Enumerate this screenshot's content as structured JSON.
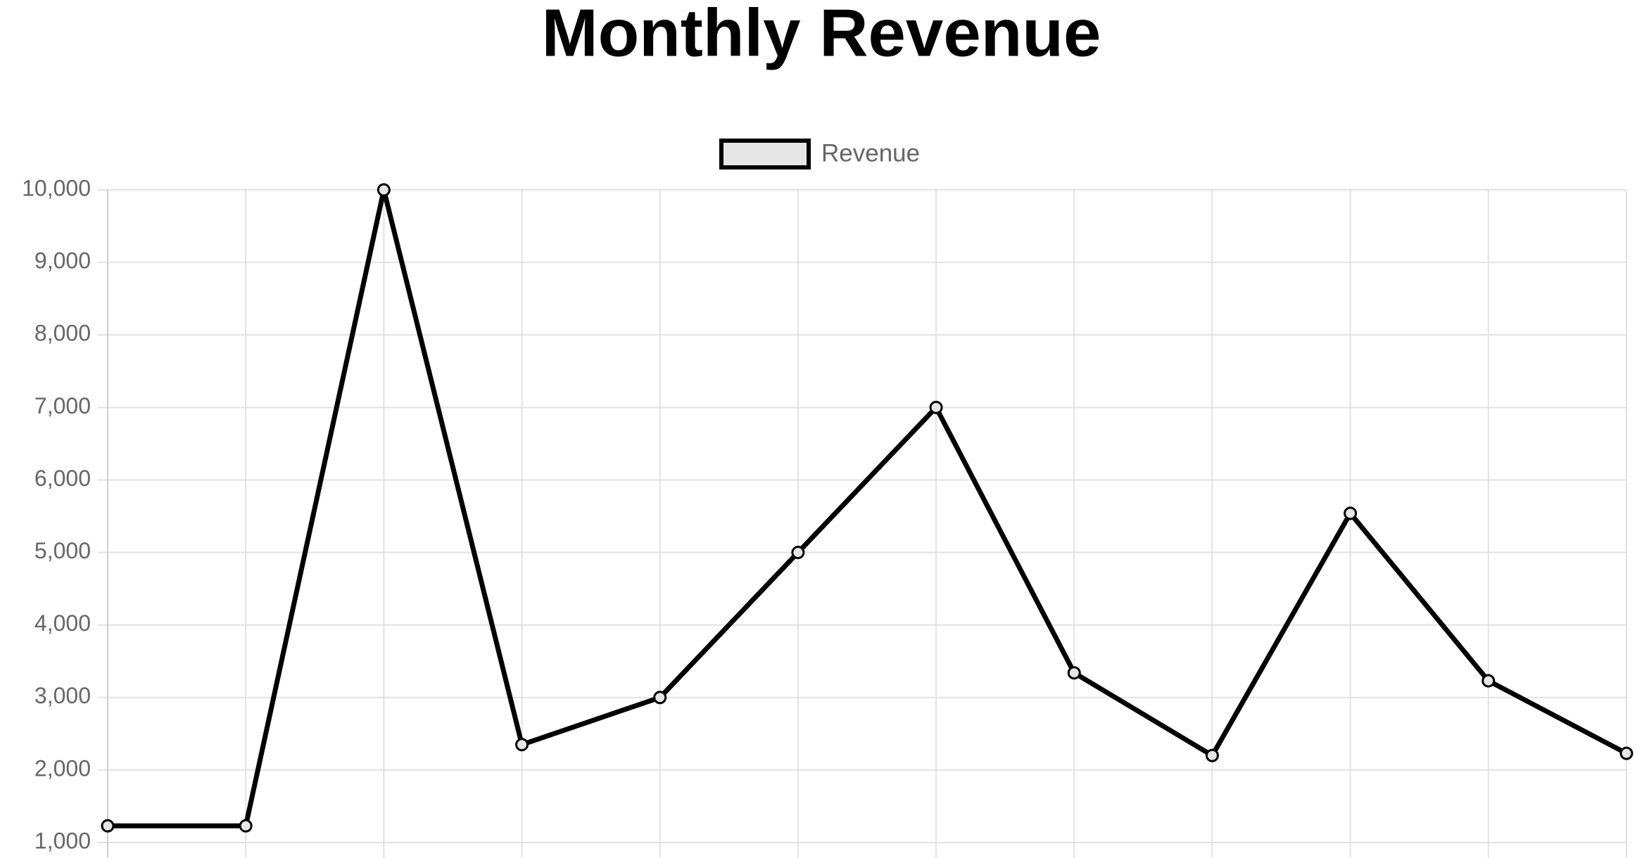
{
  "chart_data": {
    "type": "line",
    "title": "Monthly Revenue",
    "categories": [
      null,
      null,
      null,
      null,
      null,
      null,
      null,
      null,
      null,
      null,
      null,
      null
    ],
    "series": [
      {
        "name": "Revenue",
        "color": "#000000",
        "fill": "#e6e6e6",
        "values": [
          1230,
          1230,
          10000,
          2350,
          3000,
          5000,
          7000,
          3340,
          2200,
          5540,
          3230,
          2230
        ]
      }
    ],
    "ylim": [
      1000,
      10000
    ],
    "yticks": [
      {
        "value": 1000,
        "label": "1,000"
      },
      {
        "value": 2000,
        "label": "2,000"
      },
      {
        "value": 3000,
        "label": "3,000"
      },
      {
        "value": 4000,
        "label": "4,000"
      },
      {
        "value": 5000,
        "label": "5,000"
      },
      {
        "value": 6000,
        "label": "6,000"
      },
      {
        "value": 7000,
        "label": "7,000"
      },
      {
        "value": 8000,
        "label": "8,000"
      },
      {
        "value": 9000,
        "label": "9,000"
      },
      {
        "value": 10000,
        "label": "10,000"
      }
    ],
    "grid": true,
    "legend": "top"
  }
}
